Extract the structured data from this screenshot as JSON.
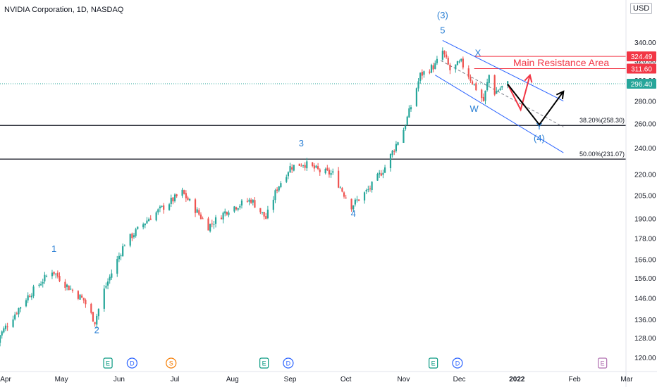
{
  "header": {
    "title": "NVIDIA Corporation, 1D, NASDAQ",
    "currency": "USD"
  },
  "colors": {
    "up": "#26a69a",
    "down": "#ef5350",
    "wave": "#2962ff",
    "wave_label": "#2a7fd4",
    "resistance": "#f23645",
    "fib": "#131722",
    "axis_text": "#131722",
    "projection_black": "#000000"
  },
  "chart_data": {
    "type": "candlestick",
    "y_scale": "log",
    "y_ticks": [
      {
        "value": 120,
        "label": "120.00"
      },
      {
        "value": 128,
        "label": "128.00"
      },
      {
        "value": 136,
        "label": "136.00"
      },
      {
        "value": 146,
        "label": "146.00"
      },
      {
        "value": 156,
        "label": "156.00"
      },
      {
        "value": 166,
        "label": "166.00"
      },
      {
        "value": 178,
        "label": "178.00"
      },
      {
        "value": 190,
        "label": "190.00"
      },
      {
        "value": 205,
        "label": "205.00"
      },
      {
        "value": 220,
        "label": "220.00"
      },
      {
        "value": 240,
        "label": "240.00"
      },
      {
        "value": 260,
        "label": "260.00"
      },
      {
        "value": 280,
        "label": "280.00"
      },
      {
        "value": 300,
        "label": "300.00"
      },
      {
        "value": 320,
        "label": "320.00"
      },
      {
        "value": 340,
        "label": "340.00"
      }
    ],
    "x_ticks": [
      {
        "date": "2021-04-01",
        "label": "Apr"
      },
      {
        "date": "2021-05-01",
        "label": "May"
      },
      {
        "date": "2021-06-01",
        "label": "Jun"
      },
      {
        "date": "2021-07-01",
        "label": "Jul"
      },
      {
        "date": "2021-08-01",
        "label": "Aug"
      },
      {
        "date": "2021-09-01",
        "label": "Sep"
      },
      {
        "date": "2021-10-01",
        "label": "Oct"
      },
      {
        "date": "2021-11-01",
        "label": "Nov"
      },
      {
        "date": "2021-12-01",
        "label": "Dec"
      },
      {
        "date": "2022-01-01",
        "label": "2022"
      },
      {
        "date": "2022-02-01",
        "label": "Feb"
      },
      {
        "date": "2022-03-01",
        "label": "Mar"
      }
    ],
    "price_path": [
      {
        "date": "2021-03-26",
        "value": 126
      },
      {
        "date": "2021-04-12",
        "value": 146
      },
      {
        "date": "2021-04-26",
        "value": 160
      },
      {
        "date": "2021-05-04",
        "value": 152
      },
      {
        "date": "2021-05-13",
        "value": 145
      },
      {
        "date": "2021-05-19",
        "value": 135
      },
      {
        "date": "2021-05-24",
        "value": 150
      },
      {
        "date": "2021-06-04",
        "value": 175
      },
      {
        "date": "2021-06-17",
        "value": 190
      },
      {
        "date": "2021-07-05",
        "value": 207
      },
      {
        "date": "2021-07-19",
        "value": 185
      },
      {
        "date": "2021-07-30",
        "value": 196
      },
      {
        "date": "2021-08-11",
        "value": 202
      },
      {
        "date": "2021-08-19",
        "value": 190
      },
      {
        "date": "2021-08-25",
        "value": 210
      },
      {
        "date": "2021-09-01",
        "value": 225
      },
      {
        "date": "2021-09-08",
        "value": 228
      },
      {
        "date": "2021-09-17",
        "value": 222
      },
      {
        "date": "2021-09-24",
        "value": 220
      },
      {
        "date": "2021-09-30",
        "value": 206
      },
      {
        "date": "2021-10-04",
        "value": 198
      },
      {
        "date": "2021-10-14",
        "value": 210
      },
      {
        "date": "2021-10-22",
        "value": 225
      },
      {
        "date": "2021-11-01",
        "value": 255
      },
      {
        "date": "2021-11-05",
        "value": 275
      },
      {
        "date": "2021-11-10",
        "value": 305
      },
      {
        "date": "2021-11-18",
        "value": 315
      },
      {
        "date": "2021-11-22",
        "value": 330
      },
      {
        "date": "2021-11-26",
        "value": 310
      },
      {
        "date": "2021-12-02",
        "value": 318
      },
      {
        "date": "2021-12-09",
        "value": 295
      },
      {
        "date": "2021-12-14",
        "value": 280
      },
      {
        "date": "2021-12-17",
        "value": 305
      },
      {
        "date": "2021-12-20",
        "value": 288
      },
      {
        "date": "2021-12-23",
        "value": 292
      },
      {
        "date": "2021-12-27",
        "value": 296.4
      }
    ],
    "wave_labels": [
      {
        "label": "1",
        "date": "2021-04-27",
        "value": 170
      },
      {
        "label": "2",
        "date": "2021-05-20",
        "value": 130
      },
      {
        "label": "3",
        "date": "2021-09-07",
        "value": 241
      },
      {
        "label": "4",
        "date": "2021-10-05",
        "value": 191
      },
      {
        "label": "5",
        "date": "2021-11-22",
        "value": 350
      },
      {
        "label": "(3)",
        "date": "2021-11-22",
        "value": 368
      },
      {
        "label": "X",
        "date": "2021-12-11",
        "value": 325
      },
      {
        "label": "W",
        "date": "2021-12-09",
        "value": 270
      },
      {
        "label": "Y",
        "date": "2022-01-13",
        "value": 255
      },
      {
        "label": "(4)",
        "date": "2022-01-13",
        "value": 245
      }
    ],
    "fib_levels": [
      {
        "value": 258.3,
        "label": "38.20%(258.30)"
      },
      {
        "value": 231.07,
        "label": "50.00%(231.07)"
      }
    ],
    "resistance_zone": {
      "low": 311.6,
      "high": 324.49,
      "start": "2021-12-09",
      "label": "Main Resistance Area"
    },
    "price_labels": [
      {
        "value": 324.49,
        "label": "324.49",
        "kind": "resistance"
      },
      {
        "value": 311.6,
        "label": "311.60",
        "kind": "resistance"
      },
      {
        "value": 296.4,
        "label": "296.40",
        "kind": "last"
      }
    ],
    "last_price": 296.4,
    "channel": {
      "upper": [
        {
          "date": "2021-11-22",
          "value": 342
        },
        {
          "date": "2022-01-26",
          "value": 280
        }
      ],
      "lower": [
        {
          "date": "2021-11-18",
          "value": 305
        },
        {
          "date": "2022-01-26",
          "value": 236
        }
      ],
      "mid": [
        {
          "date": "2021-11-21",
          "value": 320
        },
        {
          "date": "2022-01-26",
          "value": 257
        }
      ]
    },
    "projection_red": [
      {
        "date": "2021-12-27",
        "value": 296
      },
      {
        "date": "2022-01-03",
        "value": 272
      },
      {
        "date": "2022-01-08",
        "value": 305
      }
    ],
    "projection_black": [
      {
        "date": "2021-12-27",
        "value": 296
      },
      {
        "date": "2022-01-13",
        "value": 259
      },
      {
        "date": "2022-01-26",
        "value": 289
      }
    ],
    "events": [
      {
        "date": "2021-05-26",
        "label": "E",
        "kind": "earnings"
      },
      {
        "date": "2021-06-08",
        "label": "D",
        "kind": "dividend"
      },
      {
        "date": "2021-06-29",
        "label": "S",
        "kind": "split"
      },
      {
        "date": "2021-08-18",
        "label": "E",
        "kind": "earnings"
      },
      {
        "date": "2021-08-31",
        "label": "D",
        "kind": "dividend"
      },
      {
        "date": "2021-11-17",
        "label": "E",
        "kind": "earnings"
      },
      {
        "date": "2021-11-30",
        "label": "D",
        "kind": "dividend"
      },
      {
        "date": "2022-02-16",
        "label": "E",
        "kind": "earnings_future"
      }
    ]
  }
}
